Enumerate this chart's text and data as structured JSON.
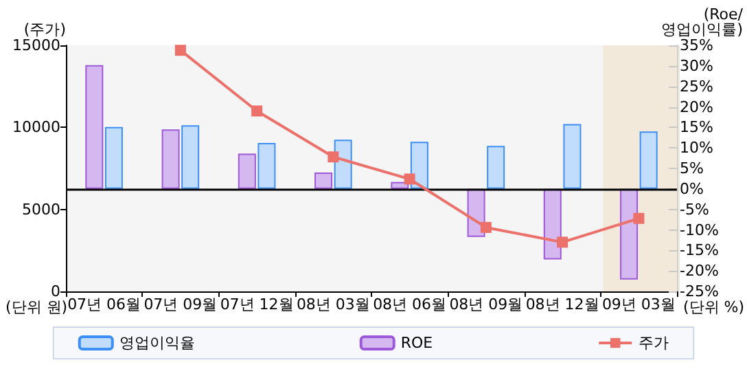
{
  "chart_data": {
    "type": "bar",
    "ylabel": "(주가)",
    "y2label": "(Roe/\n영업이익률)",
    "annotations": [
      "(단위 원)",
      "(단위 %)"
    ],
    "categories": [
      "07년 06월",
      "07년 09월",
      "07년 12월",
      "08년 03월",
      "08년 06월",
      "08년 09월",
      "08년 12월",
      "09년 03월"
    ],
    "series": [
      {
        "name": "영업이익율",
        "axis": "y2",
        "color": "#c2dcfc",
        "values": [
          15.1,
          15.5,
          11.2,
          12.0,
          11.5,
          10.5,
          15.8,
          14.0
        ]
      },
      {
        "name": "ROE",
        "axis": "y2",
        "color": "#d5b8ef",
        "values": [
          30.2,
          14.5,
          8.6,
          4.0,
          1.7,
          -11.7,
          -17.2,
          -22.1
        ]
      },
      {
        "name": "주가",
        "type": "line",
        "color": "#ec716a",
        "marker": "square",
        "values": [
          null,
          14700,
          11000,
          8200,
          6850,
          3900,
          3000,
          4450
        ]
      }
    ],
    "ylim": [
      0,
      15000
    ],
    "yticks": [
      0,
      5000,
      10000,
      15000
    ],
    "y2lim": [
      -25,
      35
    ],
    "y2ticks": [
      {
        "value": -25,
        "label": "-25%"
      },
      {
        "value": -20,
        "label": "-20%"
      },
      {
        "value": -15,
        "label": "-15%"
      },
      {
        "value": -10,
        "label": "-10%"
      },
      {
        "value": -5,
        "label": "-5%"
      },
      {
        "value": 0,
        "label": "0%"
      },
      {
        "value": 5,
        "label": "5%"
      },
      {
        "value": 10,
        "label": "10%"
      },
      {
        "value": 15,
        "label": "15%"
      },
      {
        "value": 20,
        "label": "20%"
      },
      {
        "value": 25,
        "label": "25%"
      },
      {
        "value": 30,
        "label": "30%"
      },
      {
        "value": 35,
        "label": "35%"
      }
    ],
    "ref_lines": [
      {
        "axis": "y2",
        "value": 0,
        "color": "#000000"
      }
    ],
    "bands": [
      {
        "axis": "x",
        "from": "09년 03월",
        "to": "09년 03월",
        "color": "#f2e9da"
      }
    ],
    "grid": false,
    "legend": "bottom"
  }
}
